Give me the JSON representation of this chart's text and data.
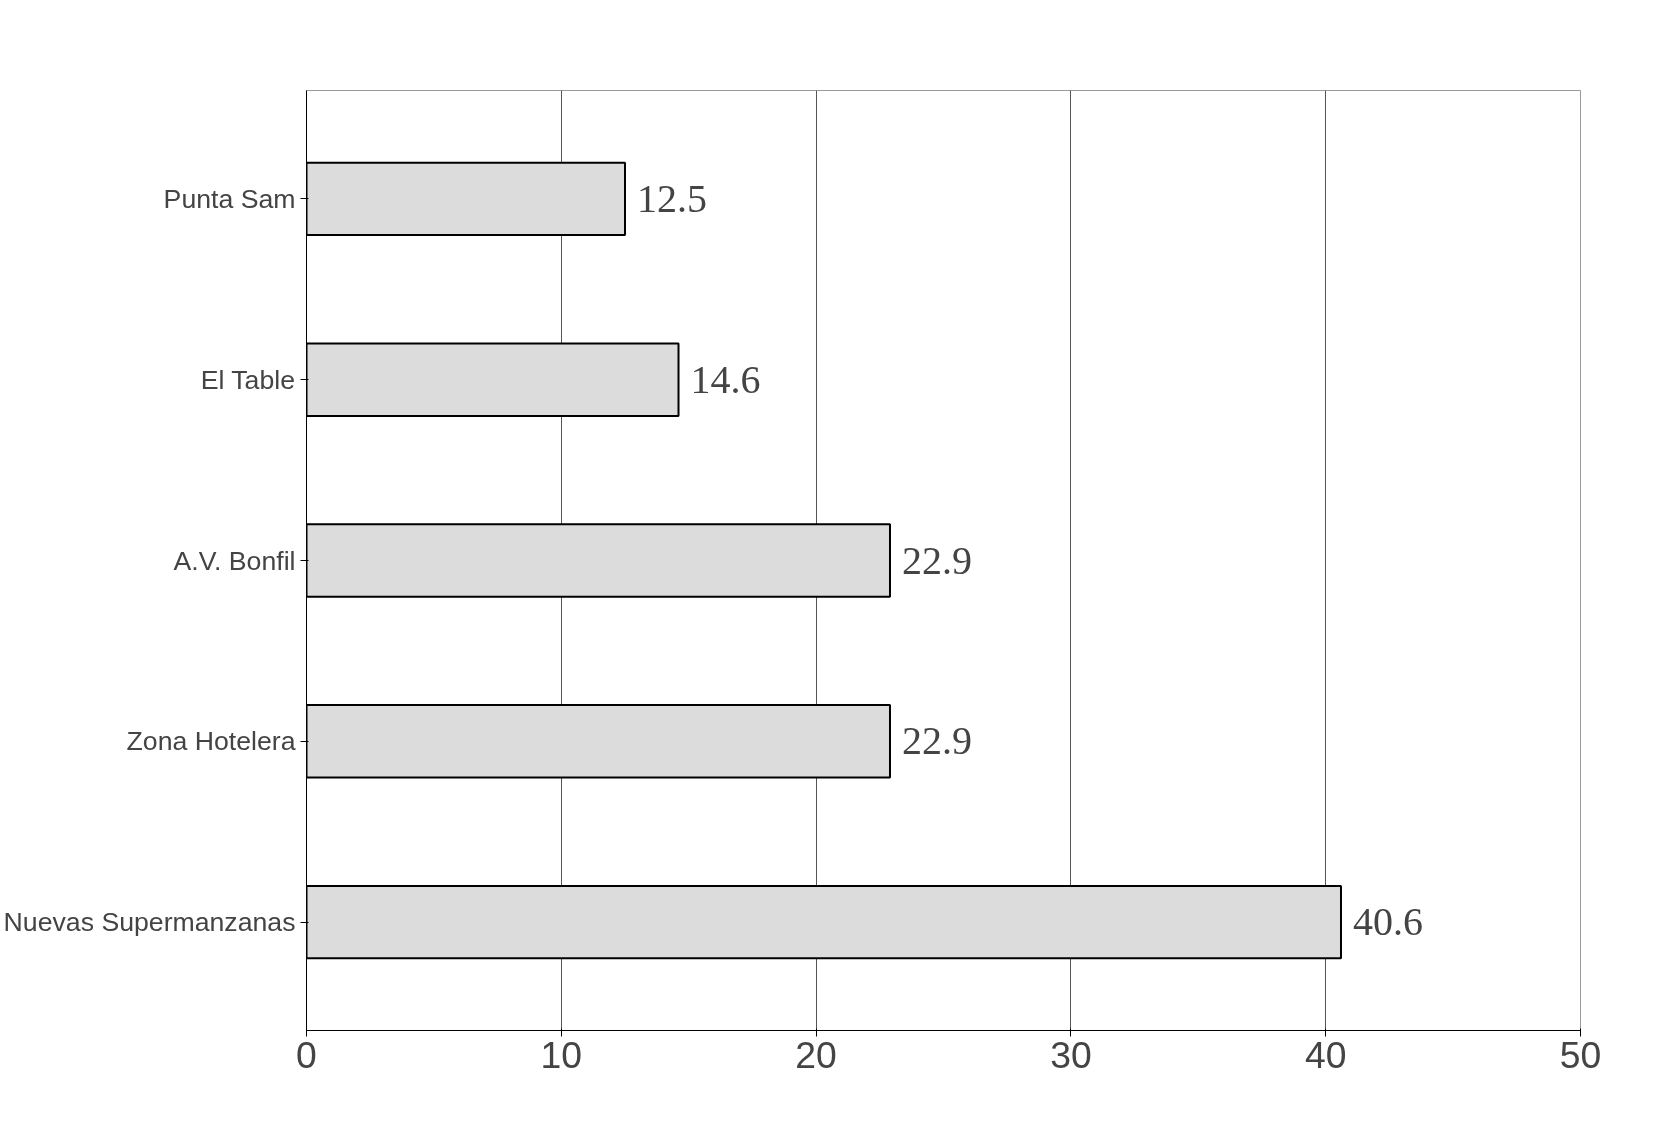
{
  "chart_data": {
    "type": "bar",
    "orientation": "horizontal",
    "categories": [
      "Punta Sam",
      "El Table",
      "A.V. Bonfil",
      "Zona Hotelera",
      "Nuevas Supermanzanas"
    ],
    "values": [
      12.5,
      14.6,
      22.9,
      22.9,
      40.6
    ],
    "color": "#dcdcdc",
    "xlim": [
      0,
      50
    ],
    "xticks": [
      0,
      10,
      20,
      30,
      40,
      50
    ],
    "grid": "x",
    "data_labels": true
  }
}
